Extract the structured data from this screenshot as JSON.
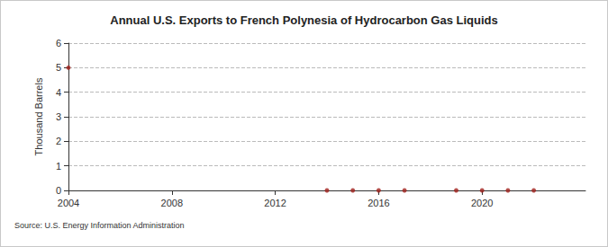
{
  "chart_data": {
    "type": "scatter",
    "title": "Annual U.S. Exports to French Polynesia of Hydrocarbon Gas Liquids",
    "y_label": "Thousand Barrels",
    "source": "Source: U.S. Energy Information Administration",
    "x": [
      2004,
      2014,
      2015,
      2016,
      2017,
      2019,
      2020,
      2021,
      2022
    ],
    "values": [
      5,
      0,
      0,
      0,
      0,
      0,
      0,
      0,
      0
    ],
    "color": "#a0201c",
    "marker": "circle",
    "xlim": [
      2004,
      2024
    ],
    "xticks": [
      2004,
      2008,
      2012,
      2016,
      2020
    ],
    "ylim": [
      0,
      6
    ],
    "yticks": [
      0,
      1,
      2,
      3,
      4,
      5,
      6
    ],
    "grid": true
  }
}
